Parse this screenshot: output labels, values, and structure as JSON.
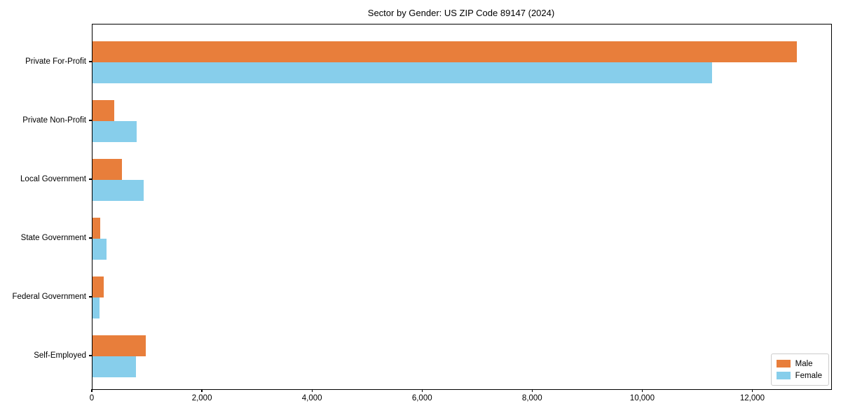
{
  "title": "Sector by Gender: US ZIP Code 89147 (2024)",
  "chart_data": {
    "type": "bar",
    "orientation": "horizontal",
    "title": "Sector by Gender: US ZIP Code 89147 (2024)",
    "categories": [
      "Private For-Profit",
      "Private Non-Profit",
      "Local Government",
      "State Government",
      "Federal Government",
      "Self-Employed"
    ],
    "series": [
      {
        "name": "Male",
        "color": "#e87e3b",
        "values": [
          12800,
          400,
          530,
          140,
          200,
          970
        ]
      },
      {
        "name": "Female",
        "color": "#87ceeb",
        "values": [
          11260,
          800,
          930,
          250,
          130,
          790
        ]
      }
    ],
    "xlabel": "",
    "ylabel": "",
    "xlim": [
      0,
      13420
    ],
    "x_ticks": [
      0,
      2000,
      4000,
      6000,
      8000,
      10000,
      12000
    ],
    "x_tick_labels": [
      "0",
      "2,000",
      "4,000",
      "6,000",
      "8,000",
      "10,000",
      "12,000"
    ],
    "grid": false,
    "legend_position": "lower right"
  },
  "legend": {
    "items": [
      {
        "label": "Male",
        "color": "#e87e3b"
      },
      {
        "label": "Female",
        "color": "#87ceeb"
      }
    ]
  }
}
